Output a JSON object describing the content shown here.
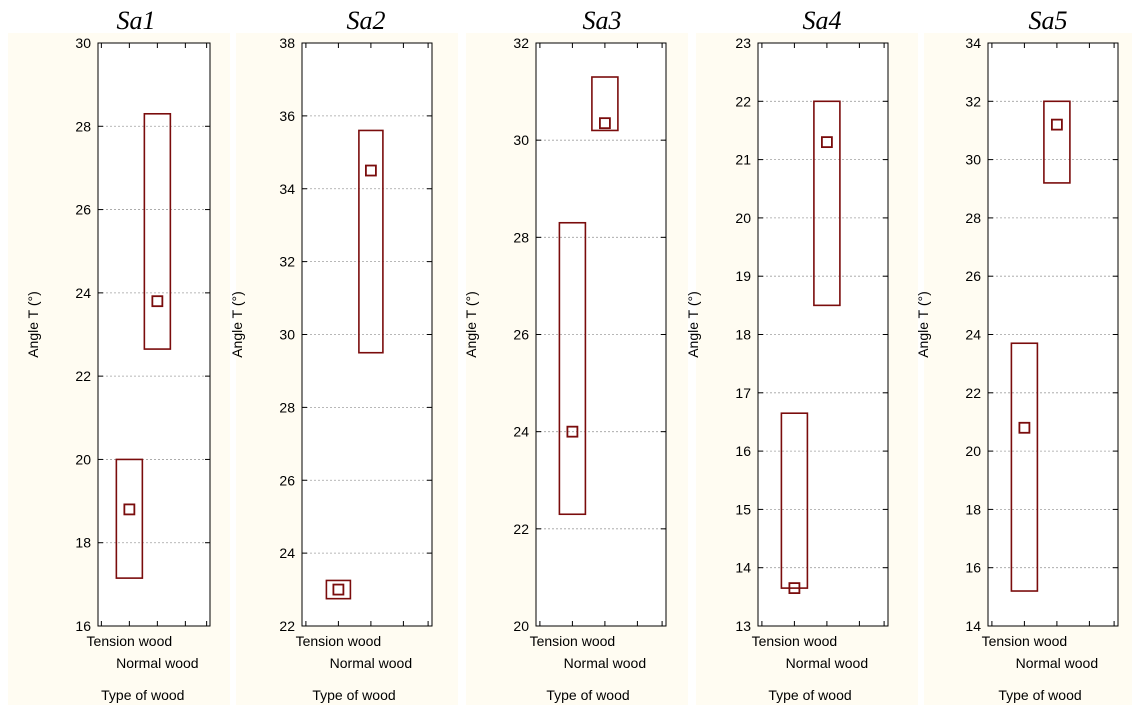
{
  "chart_data": [
    {
      "type": "box",
      "title": "Sa1",
      "xlabel": "Type of wood",
      "ylabel": "Angle T (°)",
      "categories": [
        "Tension wood",
        "Normal wood"
      ],
      "ylim": [
        16,
        30
      ],
      "yticks": [
        16,
        18,
        20,
        22,
        24,
        26,
        28,
        30
      ],
      "boxes": [
        {
          "category": "Tension wood",
          "low": 17.15,
          "high": 20.0,
          "median": 18.8
        },
        {
          "category": "Normal wood",
          "low": 22.65,
          "high": 28.3,
          "median": 23.8
        }
      ],
      "grid": true
    },
    {
      "type": "box",
      "title": "Sa2",
      "xlabel": "Type of wood",
      "ylabel": "Angle T (°)",
      "categories": [
        "Tension wood",
        "Normal wood"
      ],
      "ylim": [
        22,
        38
      ],
      "yticks": [
        22,
        24,
        26,
        28,
        30,
        32,
        34,
        36,
        38
      ],
      "boxes": [
        {
          "category": "Tension wood",
          "low": 22.75,
          "high": 23.25,
          "median": 23.0
        },
        {
          "category": "Normal wood",
          "low": 29.5,
          "high": 35.6,
          "median": 34.5
        }
      ],
      "grid": true
    },
    {
      "type": "box",
      "title": "Sa3",
      "xlabel": "Type of wood",
      "ylabel": "Angle T (°)",
      "categories": [
        "Tension wood",
        "Normal wood"
      ],
      "ylim": [
        20,
        32
      ],
      "yticks": [
        20,
        22,
        24,
        26,
        28,
        30,
        32
      ],
      "boxes": [
        {
          "category": "Tension wood",
          "low": 22.3,
          "high": 28.3,
          "median": 24.0
        },
        {
          "category": "Normal wood",
          "low": 30.2,
          "high": 31.3,
          "median": 30.35
        }
      ],
      "grid": true
    },
    {
      "type": "box",
      "title": "Sa4",
      "xlabel": "Type of wood",
      "ylabel": "Angle T (°)",
      "categories": [
        "Tension wood",
        "Normal wood"
      ],
      "ylim": [
        13,
        23
      ],
      "yticks": [
        13,
        14,
        15,
        16,
        17,
        18,
        19,
        20,
        21,
        22,
        23
      ],
      "boxes": [
        {
          "category": "Tension wood",
          "low": 13.65,
          "high": 16.65,
          "median": 13.65
        },
        {
          "category": "Normal wood",
          "low": 18.5,
          "high": 22.0,
          "median": 21.3
        }
      ],
      "grid": true
    },
    {
      "type": "box",
      "title": "Sa5",
      "xlabel": "Type of wood",
      "ylabel": "Angle T (°)",
      "categories": [
        "Tension wood",
        "Normal wood"
      ],
      "ylim": [
        14,
        34
      ],
      "yticks": [
        14,
        16,
        18,
        20,
        22,
        24,
        26,
        28,
        30,
        32,
        34
      ],
      "boxes": [
        {
          "category": "Tension wood",
          "low": 15.2,
          "high": 23.7,
          "median": 20.8
        },
        {
          "category": "Normal wood",
          "low": 29.2,
          "high": 32.0,
          "median": 31.2
        }
      ],
      "grid": true
    }
  ],
  "colors": {
    "box_stroke": "#7a0c0c",
    "panel_background": "#fffcf2",
    "grid": "#a0a0a0"
  }
}
